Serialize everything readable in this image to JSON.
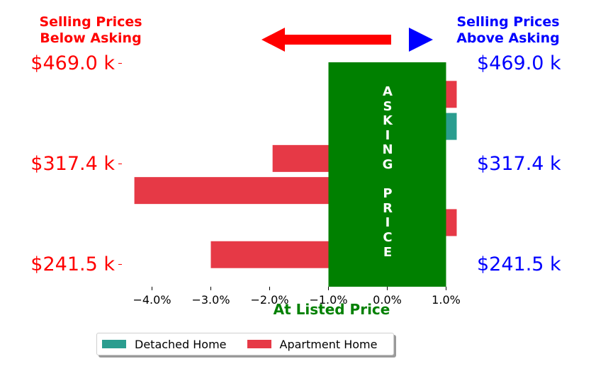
{
  "header": {
    "left": "Selling Prices\nBelow Asking",
    "right": "Selling Prices\nAbove Asking",
    "left_color": "#ff0000",
    "right_color": "#0000ff"
  },
  "price_labels": [
    "$469.0 k",
    "$317.4 k",
    "$241.5 k"
  ],
  "center_label": "At Listed Price",
  "center_label_color": "#008000",
  "asking_text": "A\nS\nK\nI\nN\nG\n\nP\nR\nI\nC\nE",
  "colors": {
    "asking_band": "#008000",
    "detached": "#2a9d8f",
    "apartment": "#e63946",
    "arrow_left": "#ff0000",
    "arrow_right": "#0000ff"
  },
  "chart_data": {
    "type": "bar",
    "orientation": "horizontal",
    "xlim": [
      -4.3,
      1.2
    ],
    "xticks": [
      -4.0,
      -3.0,
      -2.0,
      -1.0,
      0.0,
      1.0
    ],
    "xtick_labels": [
      "−4.0%",
      "−3.0%",
      "−2.0%",
      "−1.0%",
      "0.0%",
      "1.0%"
    ],
    "ylim": [
      0,
      7
    ],
    "series": [
      {
        "name": "Detached Home",
        "color": "#2a9d8f",
        "bars": [
          {
            "y": 5,
            "value": 1.2
          }
        ]
      },
      {
        "name": "Apartment Home",
        "color": "#e63946",
        "bars": [
          {
            "y": 6,
            "value": 1.2
          },
          {
            "y": 4,
            "value": -1.95
          },
          {
            "y": 3,
            "value": -4.3
          },
          {
            "y": 2,
            "value": 1.2
          },
          {
            "y": 1,
            "value": -3.0
          }
        ]
      }
    ],
    "band": {
      "xmin": -1.0,
      "xmax": 1.0
    }
  },
  "legend": [
    {
      "label": "Detached Home",
      "color": "#2a9d8f"
    },
    {
      "label": "Apartment Home",
      "color": "#e63946"
    }
  ]
}
